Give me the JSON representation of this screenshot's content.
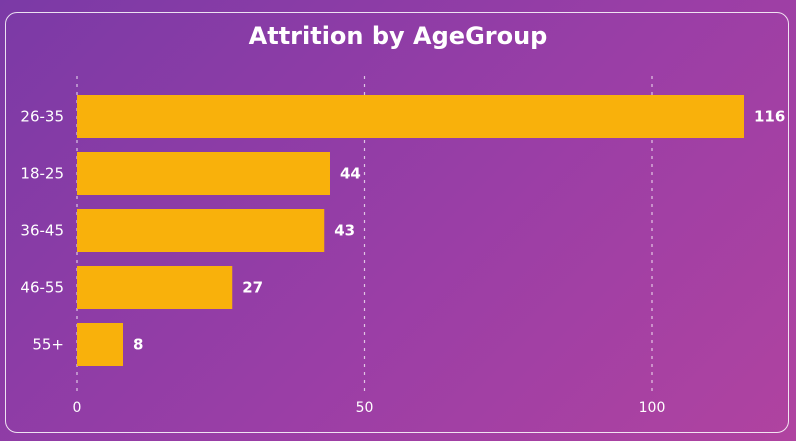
{
  "chart_data": {
    "type": "bar",
    "orientation": "horizontal",
    "title": "Attrition by AgeGroup",
    "categories": [
      "26-35",
      "18-25",
      "36-45",
      "46-55",
      "55+"
    ],
    "values": [
      116,
      44,
      43,
      27,
      8
    ],
    "xlim": [
      0,
      120
    ],
    "x_ticks": [
      0,
      50,
      100
    ],
    "grid": true,
    "bar_color": "#f9b10b",
    "text_color": "#ffffff"
  }
}
